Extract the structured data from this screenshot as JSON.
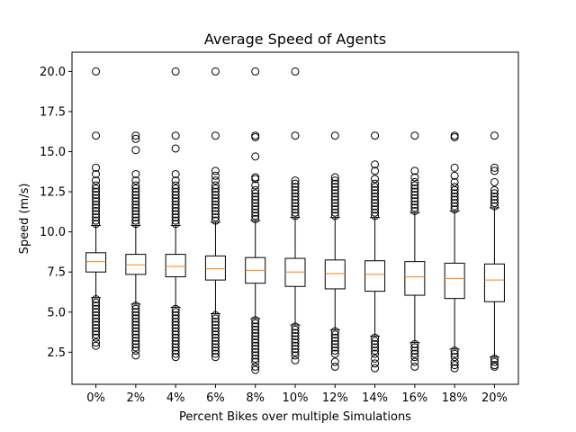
{
  "chart_data": {
    "type": "box",
    "title": "Average Speed of Agents",
    "xlabel": "Percent Bikes over multiple Simulations",
    "ylabel": "Speed (m/s)",
    "ylim": [
      0.5,
      21.2
    ],
    "yticks": [
      2.5,
      5.0,
      7.5,
      10.0,
      12.5,
      15.0,
      17.5,
      20.0
    ],
    "ytick_labels": [
      "2.5",
      "5.0",
      "7.5",
      "10.0",
      "12.5",
      "15.0",
      "17.5",
      "20.0"
    ],
    "grid": false,
    "categories": [
      "0%",
      "2%",
      "4%",
      "6%",
      "8%",
      "10%",
      "12%",
      "14%",
      "16%",
      "18%",
      "20%"
    ],
    "boxes": [
      {
        "whisker_low": 5.9,
        "q1": 7.5,
        "median": 8.15,
        "q3": 8.7,
        "whisker_high": 10.4,
        "outliers_high": [
          10.5,
          10.7,
          10.9,
          11.1,
          11.3,
          11.5,
          11.7,
          11.9,
          12.1,
          12.3,
          12.5,
          12.7,
          12.9,
          13.2,
          13.6,
          14.0,
          16.0,
          20.0
        ],
        "outliers_low": [
          5.8,
          5.6,
          5.4,
          5.2,
          5.0,
          4.8,
          4.6,
          4.4,
          4.2,
          4.0,
          3.8,
          3.6,
          3.4,
          3.1,
          2.9
        ]
      },
      {
        "whisker_low": 5.5,
        "q1": 7.35,
        "median": 7.95,
        "q3": 8.6,
        "whisker_high": 10.4,
        "outliers_high": [
          10.5,
          10.7,
          10.9,
          11.1,
          11.3,
          11.5,
          11.7,
          11.9,
          12.1,
          12.3,
          12.5,
          12.7,
          12.9,
          13.2,
          13.6,
          15.1,
          15.8,
          16.0
        ],
        "outliers_low": [
          5.4,
          5.2,
          5.0,
          4.8,
          4.6,
          4.4,
          4.2,
          4.0,
          3.8,
          3.6,
          3.4,
          3.2,
          3.0,
          2.8,
          2.6,
          2.3
        ]
      },
      {
        "whisker_low": 5.3,
        "q1": 7.2,
        "median": 7.85,
        "q3": 8.6,
        "whisker_high": 10.4,
        "outliers_high": [
          10.5,
          10.7,
          10.9,
          11.1,
          11.3,
          11.5,
          11.7,
          11.9,
          12.1,
          12.3,
          12.5,
          12.7,
          12.9,
          13.2,
          13.6,
          15.2,
          16.0,
          20.0
        ],
        "outliers_low": [
          5.2,
          5.0,
          4.8,
          4.6,
          4.4,
          4.2,
          4.0,
          3.8,
          3.6,
          3.4,
          3.2,
          3.0,
          2.8,
          2.6,
          2.4,
          2.2
        ]
      },
      {
        "whisker_low": 4.9,
        "q1": 7.0,
        "median": 7.7,
        "q3": 8.5,
        "whisker_high": 10.6,
        "outliers_high": [
          10.7,
          10.9,
          11.1,
          11.3,
          11.5,
          11.7,
          11.9,
          12.1,
          12.3,
          12.5,
          12.7,
          12.9,
          13.2,
          13.5,
          13.8,
          16.0,
          20.0
        ],
        "outliers_low": [
          4.8,
          4.6,
          4.4,
          4.2,
          4.0,
          3.8,
          3.6,
          3.4,
          3.2,
          3.0,
          2.8,
          2.6,
          2.4,
          2.2
        ]
      },
      {
        "whisker_low": 4.6,
        "q1": 6.8,
        "median": 7.6,
        "q3": 8.4,
        "whisker_high": 10.7,
        "outliers_high": [
          10.8,
          11.0,
          11.2,
          11.4,
          11.6,
          11.8,
          12.0,
          12.2,
          12.4,
          12.6,
          12.9,
          13.3,
          13.4,
          14.7,
          15.9,
          16.0,
          20.0
        ],
        "outliers_low": [
          4.5,
          4.3,
          4.1,
          3.9,
          3.7,
          3.5,
          3.3,
          3.1,
          2.9,
          2.7,
          2.5,
          2.3,
          2.1,
          1.9,
          1.6,
          1.4
        ]
      },
      {
        "whisker_low": 4.2,
        "q1": 6.6,
        "median": 7.5,
        "q3": 8.35,
        "whisker_high": 10.9,
        "outliers_high": [
          11.0,
          11.2,
          11.4,
          11.6,
          11.8,
          12.0,
          12.2,
          12.4,
          12.6,
          12.8,
          13.0,
          13.2,
          16.0,
          20.0
        ],
        "outliers_low": [
          4.1,
          3.9,
          3.7,
          3.5,
          3.3,
          3.1,
          2.9,
          2.7,
          2.5,
          2.3,
          2.0
        ]
      },
      {
        "whisker_low": 3.9,
        "q1": 6.45,
        "median": 7.4,
        "q3": 8.25,
        "whisker_high": 10.9,
        "outliers_high": [
          11.0,
          11.2,
          11.4,
          11.6,
          11.8,
          12.0,
          12.2,
          12.4,
          12.6,
          12.8,
          13.0,
          13.2,
          13.4,
          16.0
        ],
        "outliers_low": [
          3.8,
          3.6,
          3.4,
          3.2,
          3.0,
          2.8,
          2.6,
          2.4,
          1.9,
          1.6
        ]
      },
      {
        "whisker_low": 3.5,
        "q1": 6.3,
        "median": 7.35,
        "q3": 8.2,
        "whisker_high": 10.9,
        "outliers_high": [
          11.0,
          11.2,
          11.4,
          11.6,
          11.8,
          12.0,
          12.2,
          12.4,
          12.6,
          12.8,
          13.0,
          13.3,
          13.8,
          14.2,
          16.0
        ],
        "outliers_low": [
          3.4,
          3.2,
          3.0,
          2.8,
          2.6,
          2.4,
          2.1,
          1.8,
          1.5
        ]
      },
      {
        "whisker_low": 3.1,
        "q1": 6.05,
        "median": 7.2,
        "q3": 8.15,
        "whisker_high": 11.2,
        "outliers_high": [
          11.3,
          11.5,
          11.7,
          11.9,
          12.1,
          12.3,
          12.5,
          12.7,
          12.9,
          13.1,
          13.4,
          13.8,
          16.0
        ],
        "outliers_low": [
          3.0,
          2.8,
          2.6,
          2.4,
          2.2,
          1.9,
          1.6
        ]
      },
      {
        "whisker_low": 2.7,
        "q1": 5.85,
        "median": 7.1,
        "q3": 8.05,
        "whisker_high": 11.3,
        "outliers_high": [
          11.4,
          11.6,
          11.8,
          12.0,
          12.2,
          12.4,
          12.6,
          12.8,
          13.1,
          13.5,
          14.0,
          15.9,
          16.0
        ],
        "outliers_low": [
          2.6,
          2.4,
          2.2,
          1.9,
          1.7,
          1.5
        ]
      },
      {
        "whisker_low": 2.2,
        "q1": 5.65,
        "median": 7.0,
        "q3": 8.0,
        "whisker_high": 11.5,
        "outliers_high": [
          11.6,
          11.8,
          12.0,
          12.2,
          12.4,
          12.6,
          13.1,
          13.8,
          14.0,
          16.0
        ],
        "outliers_low": [
          2.1,
          1.9,
          1.7,
          1.6
        ]
      }
    ]
  },
  "colors": {
    "box": "#000000",
    "median": "#ff7f0e",
    "background": "#ffffff"
  }
}
